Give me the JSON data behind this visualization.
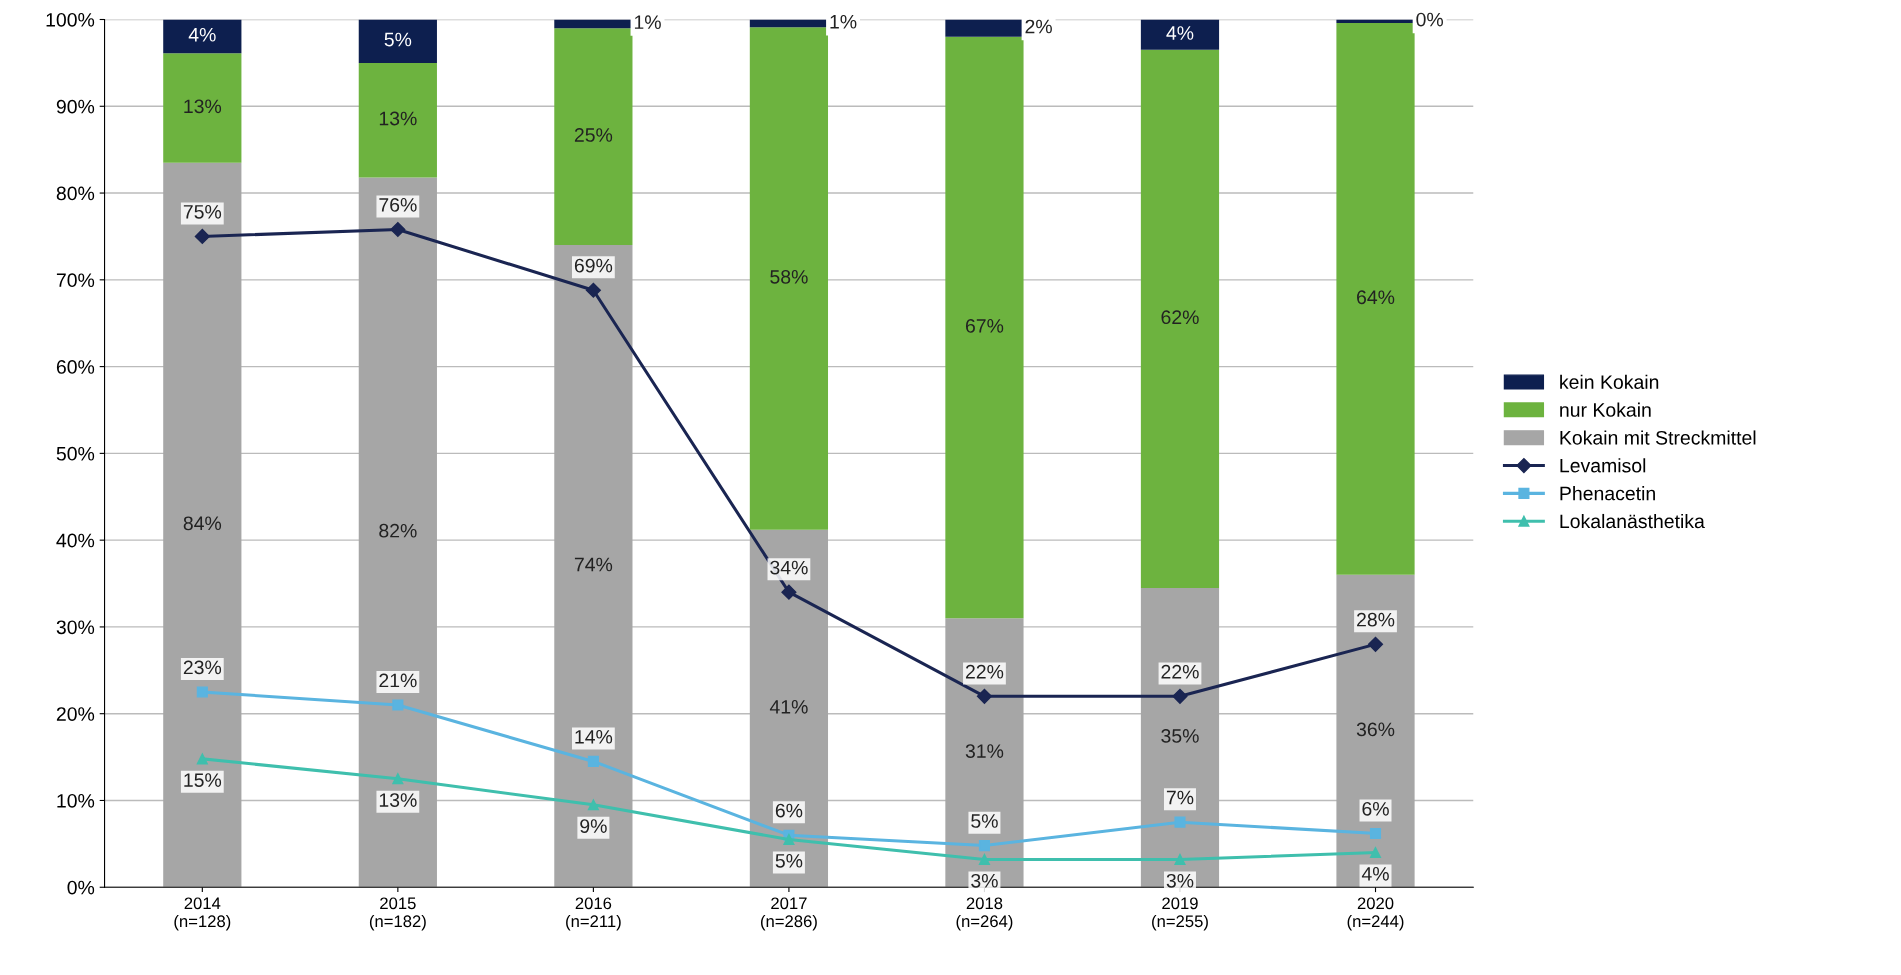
{
  "chart_data": {
    "type": "bar",
    "stacked": true,
    "categories": [
      "2014\n(n=128)",
      "2015\n(n=182)",
      "2016\n(n=211)",
      "2017\n(n=286)",
      "2018\n(n=264)",
      "2019\n(n=255)",
      "2020\n(n=244)"
    ],
    "series": [
      {
        "name": "Kokain mit Streckmittel",
        "color": "#a6a6a6",
        "values": [
          83.5,
          81.8,
          74,
          41.2,
          31,
          34.5,
          36
        ],
        "value_labels": [
          "84%",
          "82%",
          "74%",
          "41%",
          "31%",
          "35%",
          "36%"
        ]
      },
      {
        "name": "nur Kokain",
        "color": "#6db33f",
        "values": [
          12.6,
          13.2,
          25,
          57.9,
          67,
          62,
          63.6
        ],
        "value_labels": [
          "13%",
          "13%",
          "25%",
          "58%",
          "67%",
          "62%",
          "64%"
        ]
      },
      {
        "name": "kein Kokain",
        "color": "#0d1f4f",
        "values": [
          3.9,
          5,
          1,
          0.9,
          2,
          3.5,
          0.4
        ],
        "value_labels": [
          "4%",
          "5%",
          "1%",
          "1%",
          "2%",
          "4%",
          "0%"
        ]
      },
      {
        "name": "Levamisol",
        "type": "line",
        "marker": "diamond",
        "color": "#1a2552",
        "values": [
          75,
          75.8,
          68.8,
          34,
          22,
          22,
          28
        ],
        "value_labels": [
          "75%",
          "76%",
          "69%",
          "34%",
          "22%",
          "22%",
          "28%"
        ]
      },
      {
        "name": "Phenacetin",
        "type": "line",
        "marker": "square",
        "color": "#5ab4e0",
        "values": [
          22.5,
          21,
          14.5,
          6,
          4.8,
          7.5,
          6.2
        ],
        "value_labels": [
          "23%",
          "21%",
          "14%",
          "6%",
          "5%",
          "7%",
          "6%"
        ]
      },
      {
        "name": "Lokalanästhetika",
        "type": "line",
        "marker": "triangle",
        "color": "#3fbfad",
        "values": [
          14.8,
          12.5,
          9.5,
          5.5,
          3.2,
          3.2,
          4
        ],
        "value_labels": [
          "15%",
          "13%",
          "9%",
          "5%",
          "3%",
          "3%",
          "4%"
        ]
      }
    ],
    "ylim": [
      0,
      100
    ],
    "yticks": [
      {
        "value": 0,
        "label": "0%"
      },
      {
        "value": 10,
        "label": "10%"
      },
      {
        "value": 20,
        "label": "20%"
      },
      {
        "value": 30,
        "label": "30%"
      },
      {
        "value": 40,
        "label": "40%"
      },
      {
        "value": 50,
        "label": "50%"
      },
      {
        "value": 60,
        "label": "60%"
      },
      {
        "value": 70,
        "label": "70%"
      },
      {
        "value": 80,
        "label": "80%"
      },
      {
        "value": 90,
        "label": "90%"
      },
      {
        "value": 100,
        "label": "100%"
      }
    ],
    "grid": "y",
    "legend": "right"
  }
}
